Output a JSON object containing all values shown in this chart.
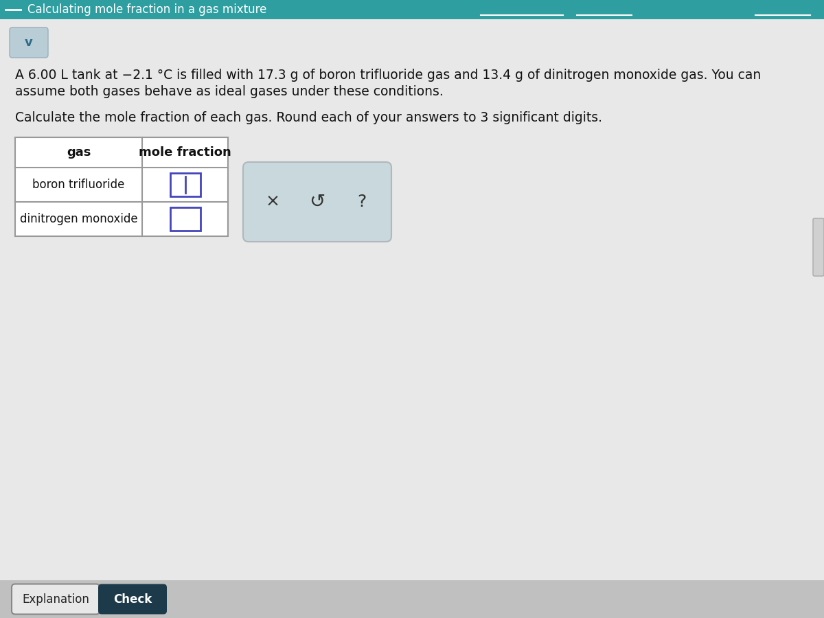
{
  "title": "Calculating mole fraction in a gas mixture",
  "title_bg": "#2e9ea0",
  "title_text_color": "#ffffff",
  "page_bg": "#d4d4d4",
  "content_bg": "#e8e8e8",
  "chevron_color": "#2e6b8a",
  "chevron_bg": "#b8cdd6",
  "problem_line1": "A 6.00 L tank at −2.1 °C is filled with 17.3 g of boron trifluoride gas and 13.4 g of dinitrogen monoxide gas. You can",
  "problem_line2": "assume both gases behave as ideal gases under these conditions.",
  "instruction": "Calculate the mole fraction of each gas. Round each of your answers to 3 significant digits.",
  "col1_header": "gas",
  "col2_header": "mole fraction",
  "row1": "boron trifluoride",
  "row2": "dinitrogen monoxide",
  "icon_x": "×",
  "icon_undo": "↺",
  "icon_q": "?",
  "btn_explanation": "Explanation",
  "btn_check": "Check",
  "btn_check_bg": "#1c3a4a",
  "btn_check_text": "#ffffff",
  "input_border": "#4444bb",
  "table_border": "#999999",
  "bottom_bar_bg": "#c0c0c0",
  "toolbar_bg": "#c8d8dc",
  "scroll_track": "#c8c8c8",
  "scroll_thumb": "#999999",
  "right_tab_bg": "#d0d0d0"
}
